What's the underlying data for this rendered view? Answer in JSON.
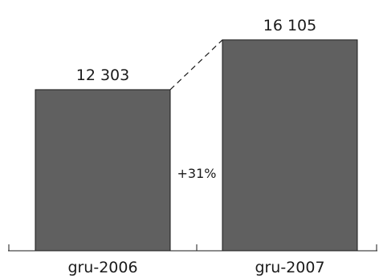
{
  "chart_data": {
    "type": "bar",
    "categories": [
      "gru-2006",
      "gru-2007"
    ],
    "values": [
      12303,
      16105
    ],
    "value_labels": [
      "12 303",
      "16 105"
    ],
    "ylim": [
      0,
      17500
    ],
    "bar_color": "#606060",
    "grid": false,
    "annotation": "+31%",
    "title": "",
    "xlabel": "",
    "ylabel": ""
  }
}
